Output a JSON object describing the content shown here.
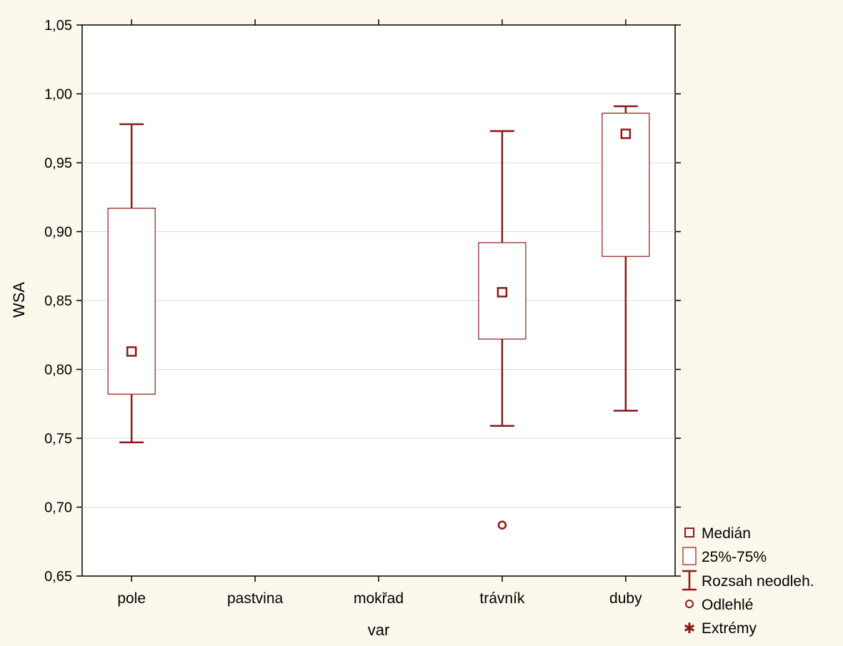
{
  "chart_data": {
    "type": "boxplot",
    "title": "",
    "xlabel": "var",
    "ylabel": "WSA",
    "ylim": [
      0.65,
      1.05
    ],
    "yticks": [
      "0,65",
      "0,70",
      "0,75",
      "0,80",
      "0,85",
      "0,90",
      "0,95",
      "1,00",
      "1,05"
    ],
    "categories": [
      "pole",
      "pastvina",
      "mokřad",
      "trávník",
      "duby"
    ],
    "series": [
      {
        "category": "pole",
        "median": 0.813,
        "q1": 0.782,
        "q3": 0.917,
        "whisker_low": 0.747,
        "whisker_high": 0.978,
        "outliers": []
      },
      {
        "category": "pastvina",
        "median": null,
        "q1": null,
        "q3": null,
        "whisker_low": null,
        "whisker_high": null,
        "outliers": []
      },
      {
        "category": "mokřad",
        "median": null,
        "q1": null,
        "q3": null,
        "whisker_low": null,
        "whisker_high": null,
        "outliers": []
      },
      {
        "category": "trávník",
        "median": 0.856,
        "q1": 0.822,
        "q3": 0.892,
        "whisker_low": 0.759,
        "whisker_high": 0.973,
        "outliers": [
          0.687
        ]
      },
      {
        "category": "duby",
        "median": 0.971,
        "q1": 0.882,
        "q3": 0.986,
        "whisker_low": 0.77,
        "whisker_high": 0.991,
        "outliers": []
      }
    ],
    "legend": {
      "position": "bottom-right",
      "items": [
        "Medián",
        "25%-75%",
        "Rozsah neodleh.",
        "Odlehlé",
        "Extrémy"
      ]
    },
    "grid": true,
    "colors": {
      "mark": "#8b1a1a",
      "grid": "#d9d9d9",
      "background": "#fdf8ec",
      "plot_background": "#ffffff"
    }
  }
}
